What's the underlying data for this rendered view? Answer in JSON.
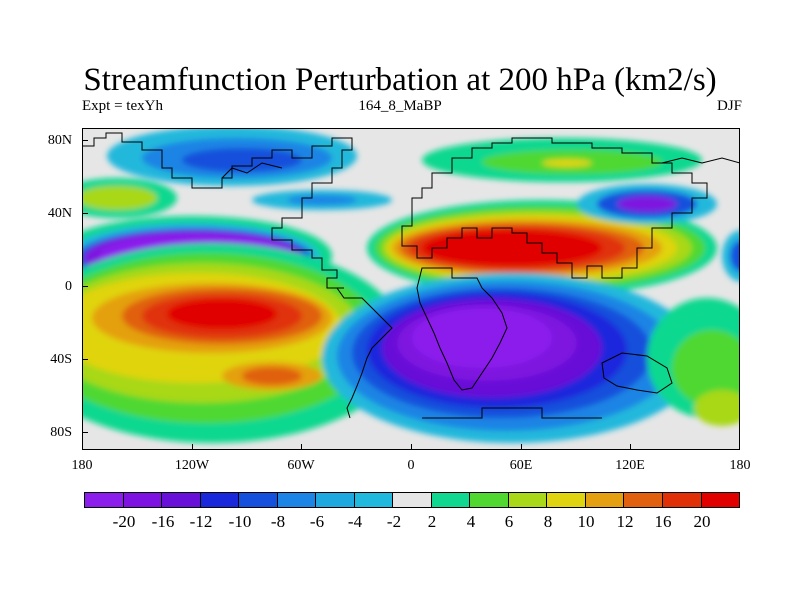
{
  "title": "Streamfunction Perturbation at 200 hPa (km2/s)",
  "left_string": "Expt = texYh",
  "center_string": "164_8_MaBP",
  "right_string": "DJF",
  "y_ticks": [
    "80N",
    "40N",
    "0",
    "40S",
    "80S"
  ],
  "x_ticks": [
    "180",
    "120W",
    "60W",
    "0",
    "60E",
    "120E",
    "180"
  ],
  "colorbar": {
    "labels": [
      "-20",
      "-16",
      "-12",
      "-10",
      "-8",
      "-6",
      "-4",
      "-2",
      "2",
      "4",
      "6",
      "8",
      "10",
      "12",
      "16",
      "20"
    ],
    "colors": [
      "#8c1eec",
      "#7e12e0",
      "#6810d8",
      "#1a28dc",
      "#1450dc",
      "#1c84e4",
      "#1ea8e0",
      "#20b8dc",
      "#e6e6e6",
      "#10d890",
      "#50d830",
      "#a8d818",
      "#e0d410",
      "#e4a010",
      "#e06010",
      "#e03008",
      "#e00000"
    ]
  },
  "map": {
    "background": "#e6e6e6",
    "regions": [
      {
        "name": "nw-pacific-negative",
        "lon": -135,
        "lat": 25,
        "level": "-20"
      },
      {
        "name": "north-africa-asia-positive",
        "lon": 55,
        "lat": 25,
        "level": "20"
      },
      {
        "name": "south-pacific-positive",
        "lon": -120,
        "lat": -15,
        "level": "16"
      },
      {
        "name": "south-indian-negative",
        "lon": 50,
        "lat": -35,
        "level": "-20"
      },
      {
        "name": "north-atlantic-negative",
        "lon": -80,
        "lat": 65,
        "level": "-8"
      },
      {
        "name": "east-asia-negative",
        "lon": 125,
        "lat": 40,
        "level": "-10"
      },
      {
        "name": "arctic-positive",
        "lon": 80,
        "lat": 70,
        "level": "8"
      }
    ]
  }
}
